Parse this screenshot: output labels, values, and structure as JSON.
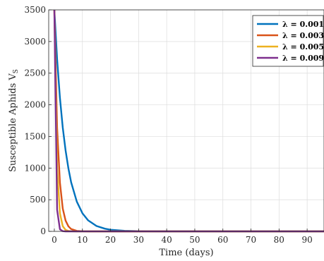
{
  "chart_data": {
    "type": "line",
    "title": "",
    "xlabel": "Time (days)",
    "ylabel": "Susceptible Aphids V",
    "ylabel_subscript": "S",
    "xlim": [
      -2,
      96
    ],
    "ylim": [
      0,
      3500
    ],
    "xticks": [
      0,
      10,
      20,
      30,
      40,
      50,
      60,
      70,
      80,
      90
    ],
    "yticks": [
      0,
      500,
      1000,
      1500,
      2000,
      2500,
      3000,
      3500
    ],
    "grid": true,
    "legend_position": "top-right",
    "x": [
      0,
      1,
      2,
      3,
      4,
      5,
      6,
      8,
      10,
      12,
      15,
      18,
      20,
      25,
      30,
      35,
      40,
      50,
      60,
      70,
      80,
      90,
      96
    ],
    "series": [
      {
        "name": "λ = 0.001",
        "color": "#0072BD",
        "values": [
          3500,
          2720,
          2110,
          1640,
          1280,
          995,
          775,
          470,
          285,
          175,
          85,
          42,
          26,
          9,
          3,
          1,
          0,
          0,
          0,
          0,
          0,
          0,
          0
        ]
      },
      {
        "name": "λ = 0.003",
        "color": "#D95319",
        "values": [
          3500,
          1640,
          770,
          360,
          170,
          80,
          37,
          8,
          2,
          0,
          0,
          0,
          0,
          0,
          0,
          0,
          0,
          0,
          0,
          0,
          0,
          0,
          0
        ]
      },
      {
        "name": "λ = 0.005",
        "color": "#EDB120",
        "values": [
          3500,
          1000,
          285,
          82,
          23,
          7,
          2,
          0,
          0,
          0,
          0,
          0,
          0,
          0,
          0,
          0,
          0,
          0,
          0,
          0,
          0,
          0,
          0
        ]
      },
      {
        "name": "λ = 0.009",
        "color": "#7E2F8E",
        "values": [
          3500,
          340,
          33,
          3,
          0,
          0,
          0,
          0,
          0,
          0,
          0,
          0,
          0,
          0,
          0,
          0,
          0,
          0,
          0,
          0,
          0,
          0,
          0
        ]
      }
    ]
  }
}
